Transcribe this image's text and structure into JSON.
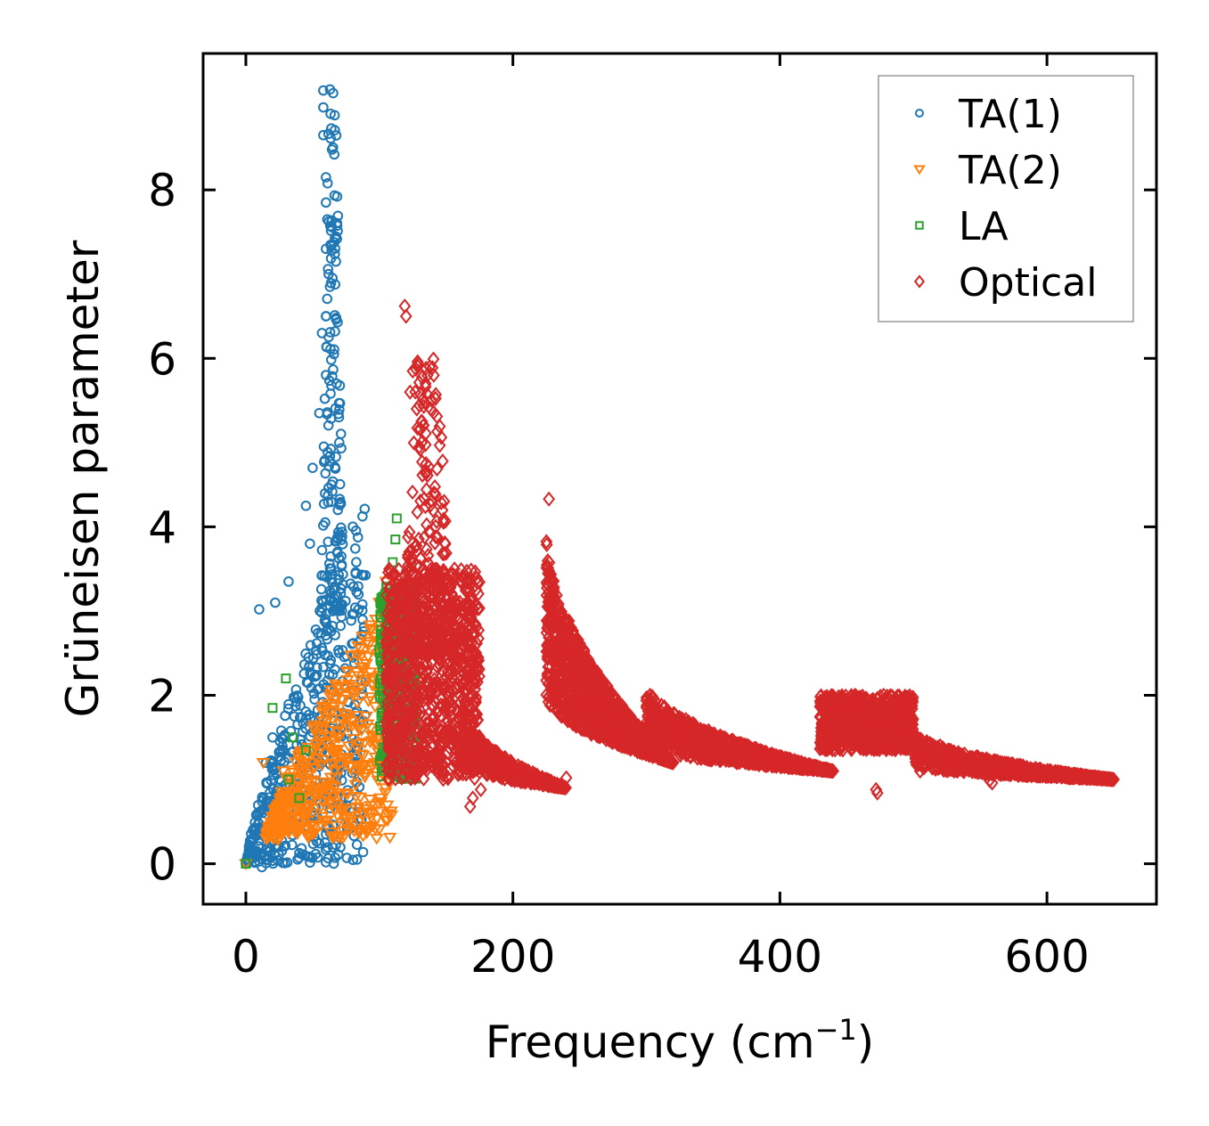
{
  "chart_data": {
    "type": "scatter",
    "title": "",
    "xlabel": "Frequency (cm",
    "xlabel_superscript": "−1",
    "xlabel_suffix": ")",
    "ylabel": "Grüneisen parameter",
    "xlim": [
      -32,
      682
    ],
    "ylim": [
      -0.48,
      9.62
    ],
    "xticks": [
      0,
      200,
      400,
      600
    ],
    "xtick_labels": [
      "0",
      "200",
      "400",
      "600"
    ],
    "yticks": [
      0,
      2,
      4,
      6,
      8
    ],
    "ytick_labels": [
      "0",
      "2",
      "4",
      "6",
      "8"
    ],
    "grid": false,
    "legend_position": "top-right",
    "series": [
      {
        "name": "TA(1)",
        "marker": "circle",
        "color": "#1f77b4",
        "clusters": [
          {
            "x": [
              0,
              90
            ],
            "y": [
              0,
              4.4
            ],
            "n": 520,
            "shape": "rising"
          },
          {
            "x": [
              55,
              75
            ],
            "y": [
              3.0,
              9.2
            ],
            "n": 160,
            "shape": "spike"
          }
        ],
        "points": [
          [
            0,
            0.0
          ],
          [
            12,
            -0.04
          ],
          [
            24,
            0.04
          ],
          [
            10,
            3.02
          ],
          [
            22,
            3.1
          ],
          [
            32,
            3.35
          ],
          [
            45,
            4.25
          ],
          [
            48,
            3.8
          ],
          [
            50,
            4.7
          ],
          [
            55,
            5.35
          ],
          [
            57,
            6.3
          ],
          [
            58,
            9.18
          ],
          [
            58,
            8.98
          ],
          [
            58,
            8.65
          ],
          [
            60,
            8.15
          ],
          [
            60,
            7.85
          ],
          [
            61,
            7.65
          ],
          [
            60,
            7.3
          ],
          [
            62,
            7.0
          ],
          [
            63,
            6.85
          ],
          [
            60,
            6.5
          ],
          [
            66,
            6.05
          ],
          [
            68,
            5.7
          ],
          [
            70,
            5.0
          ],
          [
            20,
            1.5
          ],
          [
            15,
            1.2
          ],
          [
            30,
            0.75
          ],
          [
            40,
            0.55
          ],
          [
            45,
            0.45
          ],
          [
            60,
            0.35
          ]
        ]
      },
      {
        "name": "TA(2)",
        "marker": "triangle_down",
        "color": "#ff7f0e",
        "clusters": [
          {
            "x": [
              15,
              110
            ],
            "y": [
              0.3,
              3.3
            ],
            "n": 520,
            "shape": "rising"
          }
        ],
        "points": [
          [
            0,
            0.0
          ],
          [
            13,
            1.2
          ],
          [
            22,
            0.65
          ],
          [
            24,
            0.28
          ],
          [
            28,
            1.1
          ],
          [
            30,
            0.62
          ],
          [
            75,
            0.55
          ],
          [
            90,
            0.45
          ],
          [
            98,
            0.3
          ],
          [
            105,
            3.35
          ],
          [
            100,
            3.1
          ]
        ]
      },
      {
        "name": "LA",
        "marker": "square",
        "color": "#2ca02c",
        "clusters": [
          {
            "x": [
              100,
              128
            ],
            "y": [
              1.0,
              3.3
            ],
            "n": 420,
            "shape": "band"
          }
        ],
        "points": [
          [
            0,
            0.0
          ],
          [
            20,
            1.85
          ],
          [
            30,
            2.2
          ],
          [
            32,
            1.0
          ],
          [
            35,
            1.5
          ],
          [
            40,
            0.78
          ],
          [
            45,
            1.35
          ],
          [
            110,
            3.58
          ],
          [
            112,
            3.85
          ],
          [
            113,
            4.1
          ],
          [
            124,
            3.52
          ],
          [
            127,
            3.3
          ],
          [
            122,
            2.2
          ],
          [
            132,
            2.2
          ]
        ]
      },
      {
        "name": "Optical",
        "marker": "diamond",
        "color": "#d62728",
        "clusters": [
          {
            "x": [
              105,
              175
            ],
            "y": [
              1.0,
              3.5
            ],
            "n": 950,
            "shape": "band"
          },
          {
            "x": [
              120,
              165
            ],
            "y": [
              2.5,
              6.0
            ],
            "n": 220,
            "shape": "peak"
          },
          {
            "x": [
              160,
              240
            ],
            "y": [
              0.9,
              2.0
            ],
            "n": 450,
            "shape": "decay"
          },
          {
            "x": [
              225,
              320
            ],
            "y": [
              1.2,
              4.3
            ],
            "n": 1500,
            "shape": "decay"
          },
          {
            "x": [
              300,
              440
            ],
            "y": [
              1.1,
              2.3
            ],
            "n": 1100,
            "shape": "decay"
          },
          {
            "x": [
              430,
              500
            ],
            "y": [
              1.35,
              2.0
            ],
            "n": 700,
            "shape": "band"
          },
          {
            "x": [
              500,
              650
            ],
            "y": [
              1.0,
              1.65
            ],
            "n": 900,
            "shape": "decay"
          }
        ],
        "points": [
          [
            119,
            6.62
          ],
          [
            120,
            6.5
          ],
          [
            125,
            5.85
          ],
          [
            123,
            5.6
          ],
          [
            128,
            5.4
          ],
          [
            132,
            5.25
          ],
          [
            130,
            4.95
          ],
          [
            135,
            4.75
          ],
          [
            168,
            0.68
          ],
          [
            176,
            0.88
          ],
          [
            170,
            0.78
          ],
          [
            240,
            1.02
          ],
          [
            472,
            0.88
          ],
          [
            473,
            0.84
          ],
          [
            505,
            1.1
          ],
          [
            510,
            1.45
          ],
          [
            520,
            1.4
          ],
          [
            555,
            1.2
          ],
          [
            557,
            0.99
          ],
          [
            559,
            0.96
          ],
          [
            227,
            4.33
          ]
        ]
      }
    ]
  }
}
